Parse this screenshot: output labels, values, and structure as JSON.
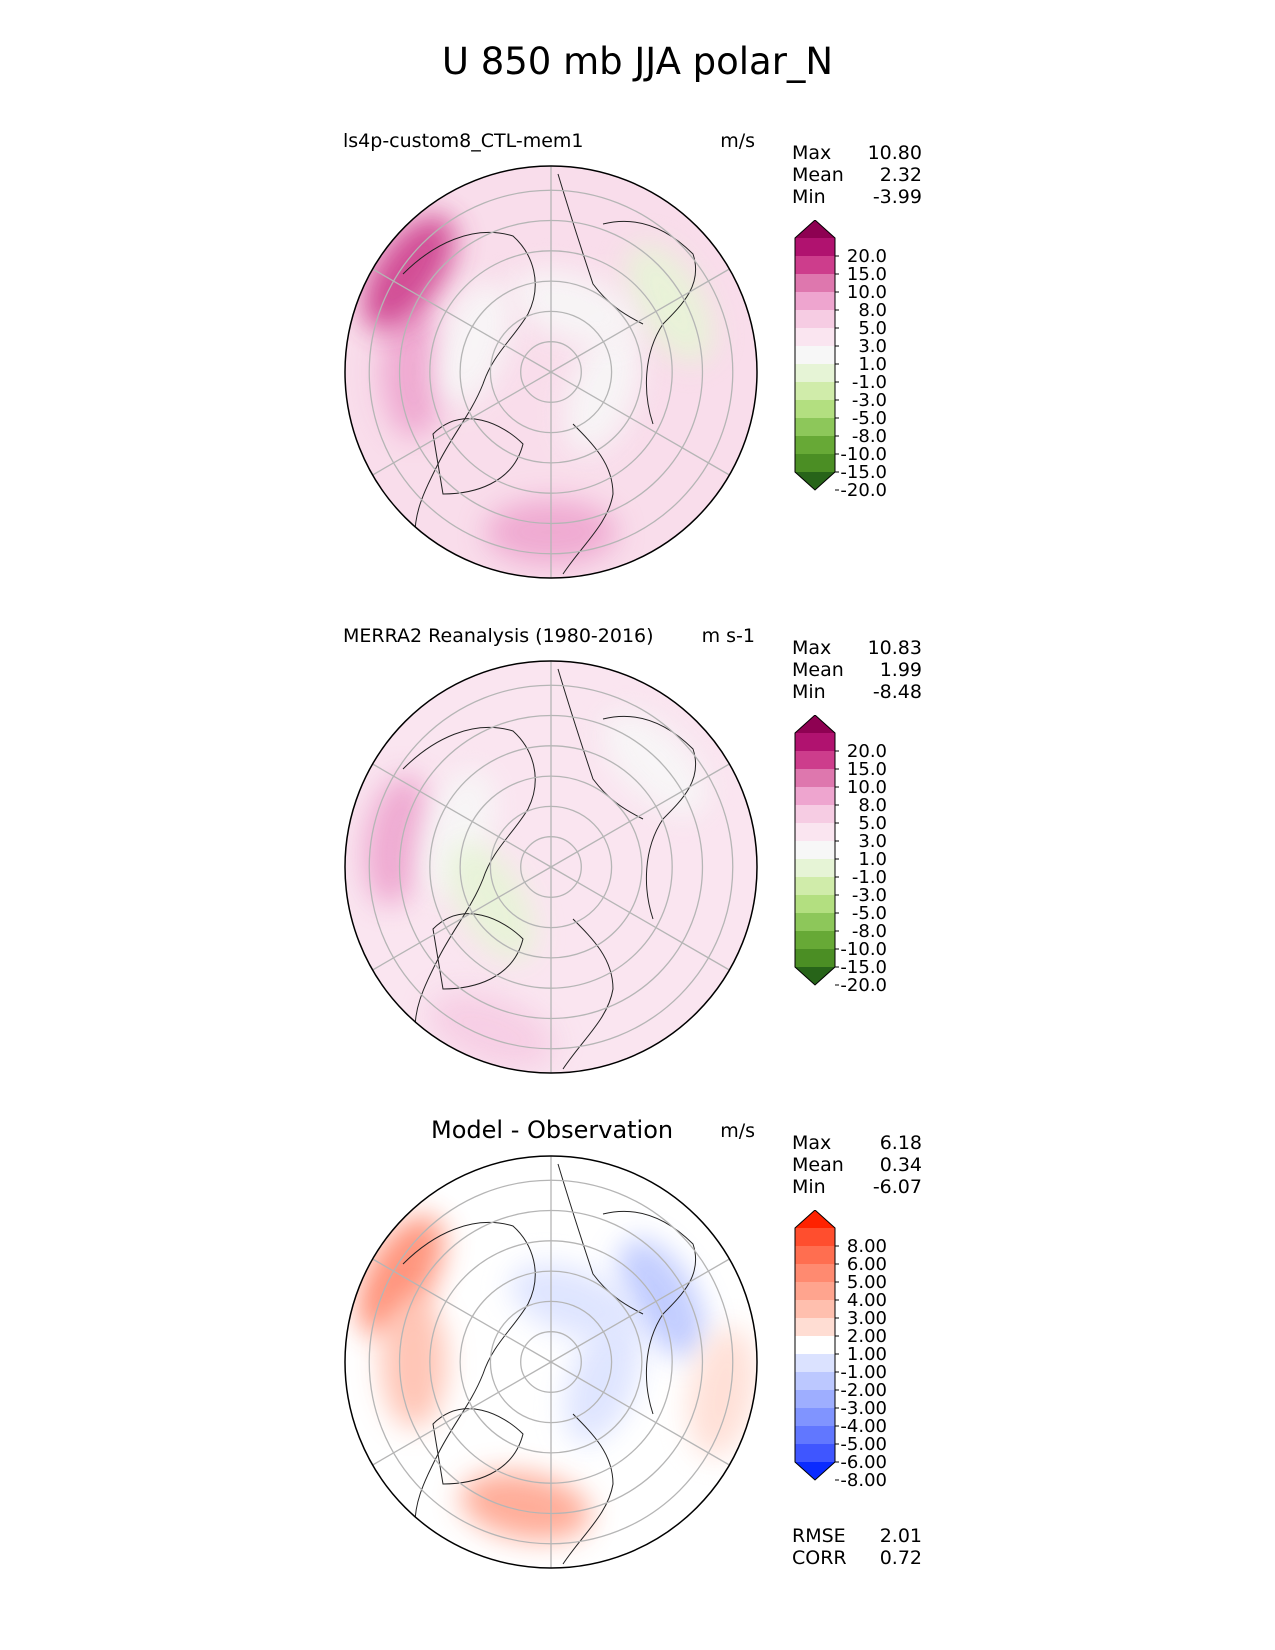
{
  "figure": {
    "title": "U 850 mb JJA polar_N"
  },
  "chart_data": [
    {
      "type": "heatmap",
      "projection": "north polar stereographic",
      "title": "ls4p-custom8_CTL-mem1",
      "units": "m/s",
      "stats": {
        "max_label": "Max",
        "max": "10.80",
        "mean_label": "Mean",
        "mean": "2.32",
        "min_label": "Min",
        "min": "-3.99"
      },
      "colorbar": {
        "levels": [
          "20.0",
          "15.0",
          "10.0",
          "8.0",
          "5.0",
          "3.0",
          "1.0",
          "-1.0",
          "-3.0",
          "-5.0",
          "-8.0",
          "-10.0",
          "-15.0",
          "-20.0"
        ],
        "colors": [
          "#8e0152",
          "#b0126f",
          "#cd3d8c",
          "#de77ae",
          "#eea5cf",
          "#f6cce3",
          "#fae5f0",
          "#f7f7f7",
          "#e6f4d6",
          "#d0ecaa",
          "#b3df80",
          "#8dc75a",
          "#67a936",
          "#4b8e24",
          "#276419"
        ],
        "extend": "both"
      },
      "field": {
        "base_color": "#f9ddeb",
        "features": [
          {
            "lon": 270,
            "colat": 30,
            "value": "5.0",
            "color": "#eea5cf"
          },
          {
            "lon": 305,
            "colat": 38,
            "value": "10.0",
            "color": "#cd3d8c"
          },
          {
            "lon": 180,
            "colat": 35,
            "value": "5.0",
            "color": "#eea5cf"
          },
          {
            "lon": 60,
            "colat": 30,
            "value": "-3.0",
            "color": "#e6f4d6"
          },
          {
            "lon": 110,
            "colat": 12,
            "value": "-1.0",
            "color": "#f7f7f7"
          },
          {
            "lon": 20,
            "colat": 15,
            "value": "-1.0",
            "color": "#f7f7f7"
          },
          {
            "lon": 290,
            "colat": 18,
            "value": "-1.0",
            "color": "#f7f7f7"
          }
        ]
      }
    },
    {
      "type": "heatmap",
      "projection": "north polar stereographic",
      "title": "MERRA2 Reanalysis (1980-2016)",
      "units": "m s-1",
      "stats": {
        "max_label": "Max",
        "max": "10.83",
        "mean_label": "Mean",
        "mean": "1.99",
        "min_label": "Min",
        "min": "-8.48"
      },
      "colorbar": {
        "levels": [
          "20.0",
          "15.0",
          "10.0",
          "8.0",
          "5.0",
          "3.0",
          "1.0",
          "-1.0",
          "-3.0",
          "-5.0",
          "-8.0",
          "-10.0",
          "-15.0",
          "-20.0"
        ],
        "colors": [
          "#8e0152",
          "#b0126f",
          "#cd3d8c",
          "#de77ae",
          "#eea5cf",
          "#f6cce3",
          "#fae5f0",
          "#f7f7f7",
          "#e6f4d6",
          "#d0ecaa",
          "#b3df80",
          "#8dc75a",
          "#67a936",
          "#4b8e24",
          "#276419"
        ],
        "extend": "both"
      },
      "field": {
        "base_color": "#fae5f0",
        "features": [
          {
            "lon": 280,
            "colat": 34,
            "value": "5.0",
            "color": "#eea5cf"
          },
          {
            "lon": 200,
            "colat": 38,
            "value": "5.0",
            "color": "#f6cce3"
          },
          {
            "lon": 45,
            "colat": 32,
            "value": "-1.0",
            "color": "#f7f7f7"
          },
          {
            "lon": 290,
            "colat": 22,
            "value": "-1.0",
            "color": "#f7f7f7"
          },
          {
            "lon": 240,
            "colat": 15,
            "value": "-3.0",
            "color": "#e6f4d6"
          }
        ]
      }
    },
    {
      "type": "heatmap",
      "projection": "north polar stereographic",
      "title": "Model - Observation",
      "units": "m/s",
      "stats": {
        "max_label": "Max",
        "max": "6.18",
        "mean_label": "Mean",
        "mean": "0.34",
        "min_label": "Min",
        "min": "-6.07"
      },
      "metrics": {
        "rmse_label": "RMSE",
        "rmse": "2.01",
        "corr_label": "CORR",
        "corr": "0.72"
      },
      "colorbar": {
        "levels": [
          "8.00",
          "6.00",
          "5.00",
          "4.00",
          "3.00",
          "2.00",
          "1.00",
          "-1.00",
          "-2.00",
          "-3.00",
          "-4.00",
          "-5.00",
          "-6.00",
          "-8.00"
        ],
        "colors": [
          "#ff2200",
          "#ff4e2e",
          "#ff6e50",
          "#ff8a70",
          "#ffa48e",
          "#ffbfae",
          "#ffddd3",
          "#ffffff",
          "#dbe2ff",
          "#bcc8ff",
          "#9eaeff",
          "#8094ff",
          "#6177ff",
          "#3f56ff",
          "#0a2bff"
        ],
        "extend": "both"
      },
      "field": {
        "base_color": "#ffffff",
        "features": [
          {
            "lon": 300,
            "colat": 38,
            "value": "4.00",
            "color": "#ff8a70"
          },
          {
            "lon": 270,
            "colat": 30,
            "value": "2.00",
            "color": "#ffbfae"
          },
          {
            "lon": 190,
            "colat": 32,
            "value": "3.00",
            "color": "#ffa48e"
          },
          {
            "lon": 60,
            "colat": 28,
            "value": "-3.00",
            "color": "#bcc8ff"
          },
          {
            "lon": 110,
            "colat": 12,
            "value": "-2.00",
            "color": "#dbe2ff"
          },
          {
            "lon": 20,
            "colat": 14,
            "value": "-2.00",
            "color": "#dbe2ff"
          },
          {
            "lon": 100,
            "colat": 38,
            "value": "2.00",
            "color": "#ffddd3"
          }
        ]
      }
    }
  ]
}
